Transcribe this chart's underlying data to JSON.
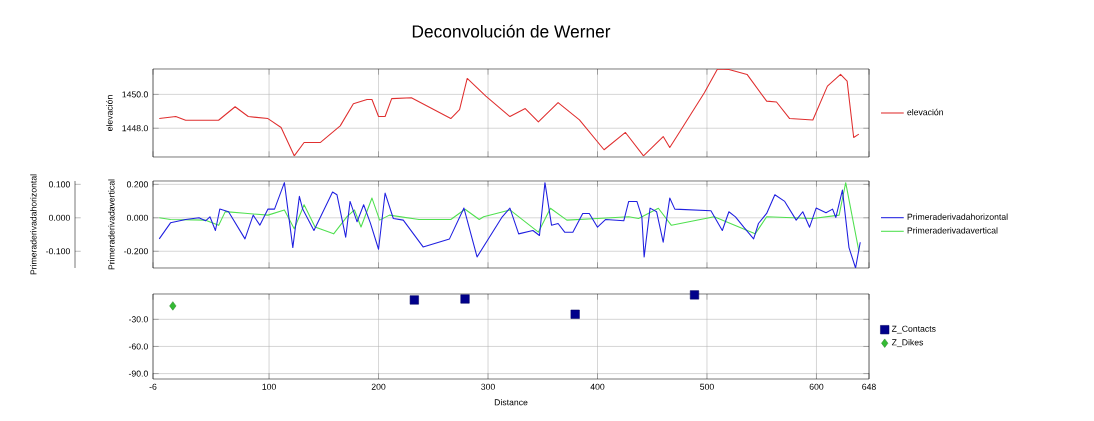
{
  "chart_data": [
    {
      "type": "line",
      "title": "Deconvolución de Werner",
      "ylabel": "elevación",
      "xlim": [
        -6,
        648
      ],
      "xticks": [
        -6,
        100,
        200,
        300,
        400,
        500,
        600,
        648
      ],
      "ylim": [
        1446.3,
        1451.5
      ],
      "yticks": [
        {
          "value": 1448,
          "label": "1448.0"
        },
        {
          "value": 1450,
          "label": "1450.0"
        }
      ],
      "grid": true,
      "legend": "right",
      "tick_labels": "y",
      "series": [
        {
          "name": "elevación",
          "color": "#e03030",
          "x": [
            -0.3,
            14.8,
            23.8,
            53.9,
            69,
            81,
            99,
            111,
            123,
            132,
            147,
            165,
            177,
            189.5,
            194,
            200,
            206,
            212,
            230,
            266,
            274,
            281,
            298,
            320,
            334,
            346,
            364,
            383.5,
            406,
            425.5,
            442,
            460,
            466,
            476.6,
            497.6,
            509.6,
            520,
            536.6,
            554.5,
            563.5,
            575.5,
            596.7,
            610,
            622,
            628,
            634,
            638.7
          ],
          "values": [
            1448.57,
            1448.69,
            1448.47,
            1448.47,
            1449.27,
            1448.69,
            1448.57,
            1448.04,
            1446.37,
            1447.16,
            1447.16,
            1448.14,
            1449.45,
            1449.7,
            1449.7,
            1448.69,
            1448.69,
            1449.75,
            1449.8,
            1448.57,
            1449.1,
            1450.94,
            1449.9,
            1448.69,
            1449.16,
            1448.37,
            1449.51,
            1448.49,
            1446.73,
            1447.75,
            1446.37,
            1447.51,
            1446.86,
            1447.94,
            1450.1,
            1451.5,
            1451.47,
            1451.18,
            1449.6,
            1449.55,
            1448.57,
            1448.49,
            1450.49,
            1451.18,
            1450.78,
            1447.45,
            1447.65
          ]
        }
      ]
    },
    {
      "type": "line",
      "ylabel": "Primeraderivadavertical",
      "y2label": "Primeraderivadahorizontal",
      "xlim": [
        -6,
        648
      ],
      "xticks": [
        -6,
        100,
        200,
        300,
        400,
        500,
        600,
        648
      ],
      "ylim": [
        -0.3,
        0.22
      ],
      "yticks": [
        {
          "value": -0.2,
          "label": "-0.200"
        },
        {
          "value": 0,
          "label": "0.000"
        },
        {
          "value": 0.2,
          "label": "0.200"
        }
      ],
      "y2lim": [
        -0.15,
        0.11
      ],
      "y2ticks": [
        {
          "value": -0.1,
          "label": "-0.100"
        },
        {
          "value": 0,
          "label": "0.000"
        },
        {
          "value": 0.1,
          "label": "0.100"
        }
      ],
      "grid": true,
      "legend": "right",
      "tick_labels": "y",
      "series": [
        {
          "name": "Primeraderivadahorizontal",
          "color": "#2020e0",
          "axis": "y2",
          "x": [
            -0.3,
            10,
            23.8,
            36,
            42,
            46,
            51,
            55,
            63,
            78,
            85.5,
            91.6,
            99,
            105,
            114,
            121.7,
            127.7,
            130.7,
            141,
            158,
            162,
            170,
            174,
            180.4,
            186.4,
            192.5,
            200,
            206,
            213.5,
            222.6,
            240.7,
            264.8,
            278,
            290,
            313,
            320,
            328,
            341,
            347,
            352,
            358,
            364,
            370,
            377.5,
            386.5,
            392.5,
            400,
            407.5,
            424,
            428.5,
            436,
            440.5,
            442.6,
            448,
            454,
            460,
            466,
            470.6,
            503.6,
            514,
            520,
            526,
            533.6,
            542.6,
            547,
            554.5,
            562,
            571,
            581.5,
            587.5,
            593.7,
            599.7,
            608.7,
            614.7,
            617.7,
            623.7,
            629.7,
            635.7,
            640
          ],
          "values": [
            -0.063,
            -0.015,
            -0.005,
            0,
            -0.009,
            0.003,
            -0.038,
            0.026,
            0.018,
            -0.063,
            0.008,
            -0.022,
            0.026,
            0.026,
            0.105,
            -0.089,
            0.064,
            0.026,
            -0.038,
            0.077,
            0.069,
            -0.058,
            0.049,
            -0.012,
            0.039,
            -0.015,
            -0.094,
            0.074,
            -0.002,
            -0.007,
            -0.087,
            -0.063,
            0.029,
            -0.117,
            0.003,
            0.029,
            -0.048,
            -0.038,
            -0.053,
            0.105,
            -0.022,
            -0.017,
            -0.043,
            -0.043,
            0.013,
            0.013,
            -0.028,
            -0.005,
            -0.009,
            0.049,
            0.049,
            0.003,
            -0.117,
            0.029,
            0.018,
            -0.073,
            0.059,
            0.026,
            0.021,
            -0.038,
            0.018,
            0.003,
            -0.028,
            -0.063,
            -0.017,
            0.013,
            0.069,
            0.049,
            -0.007,
            0.018,
            -0.028,
            0.029,
            0.015,
            0.026,
            0.001,
            0.083,
            -0.089,
            -0.15,
            -0.073
          ]
        },
        {
          "name": "Primeraderivadavertical",
          "color": "#50e050",
          "axis": "y",
          "x": [
            -0.3,
            10,
            42,
            54,
            60,
            78,
            99,
            114,
            123,
            132,
            142,
            159,
            171,
            178,
            184,
            194,
            201,
            210,
            237,
            266,
            279,
            292,
            296,
            320,
            346,
            357,
            372,
            400,
            428.5,
            437.5,
            455.6,
            467.5,
            506.6,
            544,
            554.5,
            596.7,
            620.7,
            626.7,
            638.7
          ],
          "values": [
            0,
            -0.01,
            -0.014,
            -0.045,
            0.037,
            0.027,
            0.016,
            0.047,
            -0.065,
            0.078,
            -0.055,
            -0.096,
            0.006,
            0.047,
            -0.055,
            0.118,
            -0.014,
            0.016,
            -0.01,
            -0.01,
            0.051,
            -0.01,
            0.006,
            0.047,
            -0.086,
            0.057,
            -0.014,
            -0.004,
            0.006,
            -0.004,
            0.057,
            -0.045,
            0.006,
            -0.096,
            0.006,
            -0.004,
            0.016,
            0.21,
            -0.198
          ]
        }
      ]
    },
    {
      "type": "scatter",
      "xlabel": "Distance",
      "xlim": [
        -6,
        648
      ],
      "xticks": [
        -6,
        100,
        200,
        300,
        400,
        500,
        600,
        648
      ],
      "ylim": [
        -96,
        -2
      ],
      "yticks": [
        {
          "value": -90,
          "label": "-90.0"
        },
        {
          "value": -60,
          "label": "-60.0"
        },
        {
          "value": -30,
          "label": "-30.0"
        }
      ],
      "grid": true,
      "legend": "right",
      "series": [
        {
          "name": "Z_Contacts",
          "color": "#00008b",
          "marker": "square",
          "x": [
            232.7,
            279,
            379.6,
            488.6
          ],
          "values": [
            -8.6,
            -7.5,
            -24.4,
            -3
          ]
        },
        {
          "name": "Z_Dikes",
          "color": "#33bb33",
          "marker": "diamond",
          "x": [
            12.1
          ],
          "values": [
            -15.2
          ]
        }
      ]
    }
  ]
}
